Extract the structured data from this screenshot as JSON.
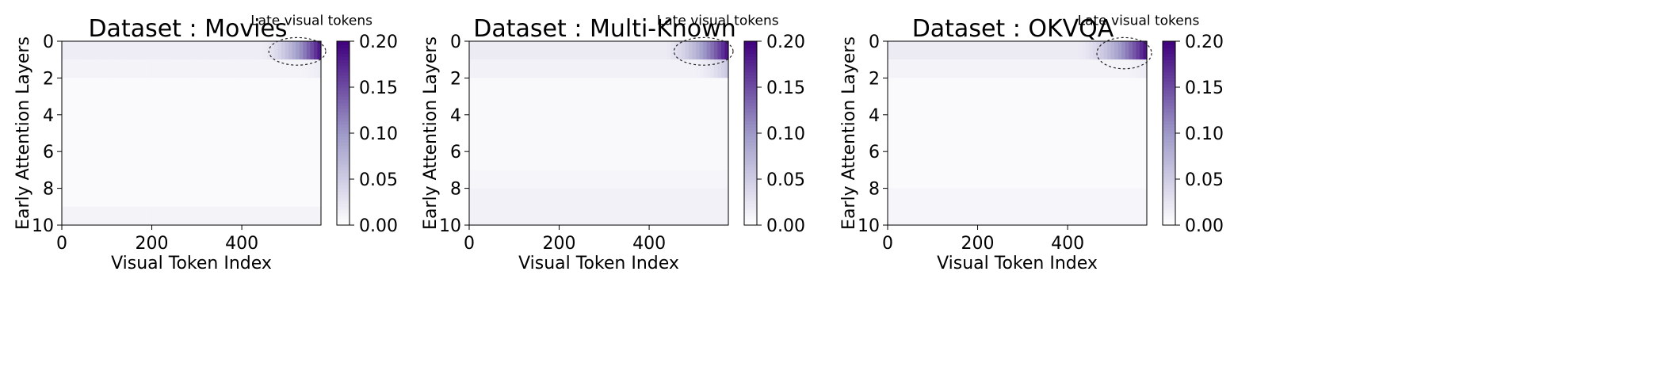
{
  "chart_data": [
    {
      "type": "heatmap",
      "title": "Dataset : Movies",
      "xlabel": "Visual Token Index",
      "ylabel": "Early Attention Layers",
      "x_range": [
        0,
        576
      ],
      "y_range": [
        0,
        10
      ],
      "x_ticks": [
        "0",
        "200",
        "400"
      ],
      "y_ticks": [
        "0",
        "2",
        "4",
        "6",
        "8",
        "10"
      ],
      "colorbar": {
        "min": 0.0,
        "max": 0.2,
        "ticks": [
          "0.00",
          "0.05",
          "0.10",
          "0.15",
          "0.20"
        ]
      },
      "annotation": {
        "text": "Late visual tokens",
        "x_start": 460,
        "x_end": 576,
        "y_start": -0.2,
        "y_end": 1.3
      },
      "layer_rows": [
        {
          "y_start": 0,
          "y_end": 1,
          "base": 0.018,
          "ramp_start": 440,
          "ramp_max": 0.2
        },
        {
          "y_start": 1,
          "y_end": 2,
          "base": 0.012,
          "ramp_start": 520,
          "ramp_max": 0.02
        },
        {
          "y_start": 2,
          "y_end": 9,
          "base": 0.005,
          "ramp_start": 576,
          "ramp_max": 0.005
        },
        {
          "y_start": 9,
          "y_end": 10,
          "base": 0.012,
          "ramp_start": 576,
          "ramp_max": 0.012
        }
      ]
    },
    {
      "type": "heatmap",
      "title": "Dataset : Multi-Known",
      "xlabel": "Visual Token Index",
      "ylabel": "Early Attention Layers",
      "x_range": [
        0,
        576
      ],
      "y_range": [
        0,
        10
      ],
      "x_ticks": [
        "0",
        "200",
        "400"
      ],
      "y_ticks": [
        "0",
        "2",
        "4",
        "6",
        "8",
        "10"
      ],
      "colorbar": {
        "min": 0.0,
        "max": 0.2,
        "ticks": [
          "0.00",
          "0.05",
          "0.10",
          "0.15",
          "0.20"
        ]
      },
      "annotation": {
        "text": "Late visual tokens",
        "x_start": 455,
        "x_end": 576,
        "y_start": -0.2,
        "y_end": 1.3
      },
      "layer_rows": [
        {
          "y_start": 0,
          "y_end": 1,
          "base": 0.02,
          "ramp_start": 430,
          "ramp_max": 0.2
        },
        {
          "y_start": 1,
          "y_end": 2,
          "base": 0.014,
          "ramp_start": 500,
          "ramp_max": 0.06
        },
        {
          "y_start": 2,
          "y_end": 7,
          "base": 0.006,
          "ramp_start": 576,
          "ramp_max": 0.006
        },
        {
          "y_start": 7,
          "y_end": 8,
          "base": 0.01,
          "ramp_start": 576,
          "ramp_max": 0.01
        },
        {
          "y_start": 8,
          "y_end": 10,
          "base": 0.014,
          "ramp_start": 576,
          "ramp_max": 0.014
        }
      ]
    },
    {
      "type": "heatmap",
      "title": "Dataset : OKVQA",
      "xlabel": "Visual Token Index",
      "ylabel": "Early Attention Layers",
      "x_range": [
        0,
        576
      ],
      "y_range": [
        0,
        10
      ],
      "x_ticks": [
        "0",
        "200",
        "400"
      ],
      "y_ticks": [
        "0",
        "2",
        "4",
        "6",
        "8",
        "10"
      ],
      "colorbar": {
        "min": 0.0,
        "max": 0.2,
        "ticks": [
          "0.00",
          "0.05",
          "0.10",
          "0.15",
          "0.20"
        ]
      },
      "annotation": {
        "text": "Late visual tokens",
        "x_start": 465,
        "x_end": 576,
        "y_start": -0.2,
        "y_end": 1.5
      },
      "layer_rows": [
        {
          "y_start": 0,
          "y_end": 1,
          "base": 0.02,
          "ramp_start": 420,
          "ramp_max": 0.2
        },
        {
          "y_start": 1,
          "y_end": 2,
          "base": 0.012,
          "ramp_start": 520,
          "ramp_max": 0.02
        },
        {
          "y_start": 2,
          "y_end": 8,
          "base": 0.005,
          "ramp_start": 576,
          "ramp_max": 0.005
        },
        {
          "y_start": 8,
          "y_end": 10,
          "base": 0.01,
          "ramp_start": 576,
          "ramp_max": 0.01
        }
      ]
    }
  ],
  "colors": {
    "cmap_low": "#ffffff",
    "cmap_mid": "#9e9ac8",
    "cmap_high": "#3f007d"
  }
}
